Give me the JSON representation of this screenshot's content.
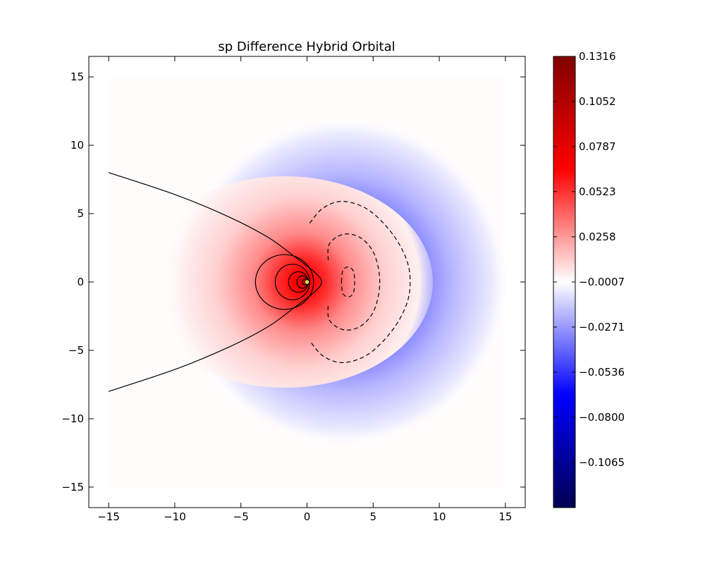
{
  "chart_data": {
    "type": "heatmap",
    "title": "sp Difference Hybrid Orbital",
    "xlabel": "",
    "ylabel": "",
    "xlim": [
      -16.5,
      16.5
    ],
    "ylim": [
      -16.5,
      16.5
    ],
    "x_ticks": [
      -15,
      -10,
      -5,
      0,
      5,
      10,
      15
    ],
    "y_ticks": [
      -15,
      -10,
      -5,
      0,
      5,
      10,
      15
    ],
    "x_tick_labels": [
      "−15",
      "−10",
      "−5",
      "0",
      "5",
      "10",
      "15"
    ],
    "y_tick_labels": [
      "−15",
      "−10",
      "−5",
      "0",
      "5",
      "10",
      "15"
    ],
    "grid": false,
    "data_extent": {
      "x": [
        -15,
        15
      ],
      "y": [
        -15,
        15
      ]
    },
    "colormap": "seismic",
    "colorbar": {
      "range": [
        -0.133,
        0.1316
      ],
      "ticks": [
        0.1316,
        0.1052,
        0.0787,
        0.0523,
        0.0258,
        -0.0007,
        -0.0271,
        -0.0536,
        -0.08,
        -0.1065
      ],
      "tick_labels": [
        "0.1316",
        "0.1052",
        "0.0787",
        "0.0523",
        "0.0258",
        "−0.0007",
        "−0.0271",
        "−0.0536",
        "−0.0800",
        "−0.1065"
      ]
    },
    "nodal_line": {
      "style": "solid",
      "points": [
        [
          -15,
          8
        ],
        [
          -10,
          6.4
        ],
        [
          -6,
          4.8
        ],
        [
          -3,
          3.3
        ],
        [
          -1,
          1.9
        ],
        [
          0.6,
          0.7
        ],
        [
          1.1,
          0
        ]
      ]
    },
    "positive_contours": [
      {
        "cx": -1.7,
        "cy": 0,
        "rx": 2.2,
        "ry": 2.0
      },
      {
        "cx": -1.1,
        "cy": 0,
        "rx": 1.3,
        "ry": 1.3
      },
      {
        "cx": -0.65,
        "cy": 0,
        "rx": 0.75,
        "ry": 0.75
      },
      {
        "cx": -0.35,
        "cy": 0,
        "rx": 0.42,
        "ry": 0.45
      },
      {
        "cx": -0.15,
        "cy": 0,
        "rx": 0.2,
        "ry": 0.22
      }
    ],
    "negative_contours": [
      {
        "style": "dashed",
        "points": [
          [
            0.2,
            4.3
          ],
          [
            1.2,
            5.4
          ],
          [
            2.7,
            5.9
          ],
          [
            4.6,
            5.3
          ],
          [
            6.4,
            3.6
          ],
          [
            7.5,
            1.7
          ],
          [
            7.8,
            0
          ]
        ]
      },
      {
        "style": "dashed",
        "points": [
          [
            1.6,
            1.6
          ],
          [
            1.7,
            2.8
          ],
          [
            2.8,
            3.5
          ],
          [
            4.1,
            3.2
          ],
          [
            5.1,
            2.0
          ],
          [
            5.5,
            0
          ]
        ]
      },
      {
        "style": "dashed",
        "points": [
          [
            2.6,
            0
          ],
          [
            2.7,
            0.8
          ],
          [
            3.1,
            1.1
          ],
          [
            3.5,
            0.8
          ],
          [
            3.6,
            0
          ]
        ]
      }
    ],
    "nucleus": {
      "x": 0,
      "y": 0,
      "color": "#e3e04a"
    }
  }
}
